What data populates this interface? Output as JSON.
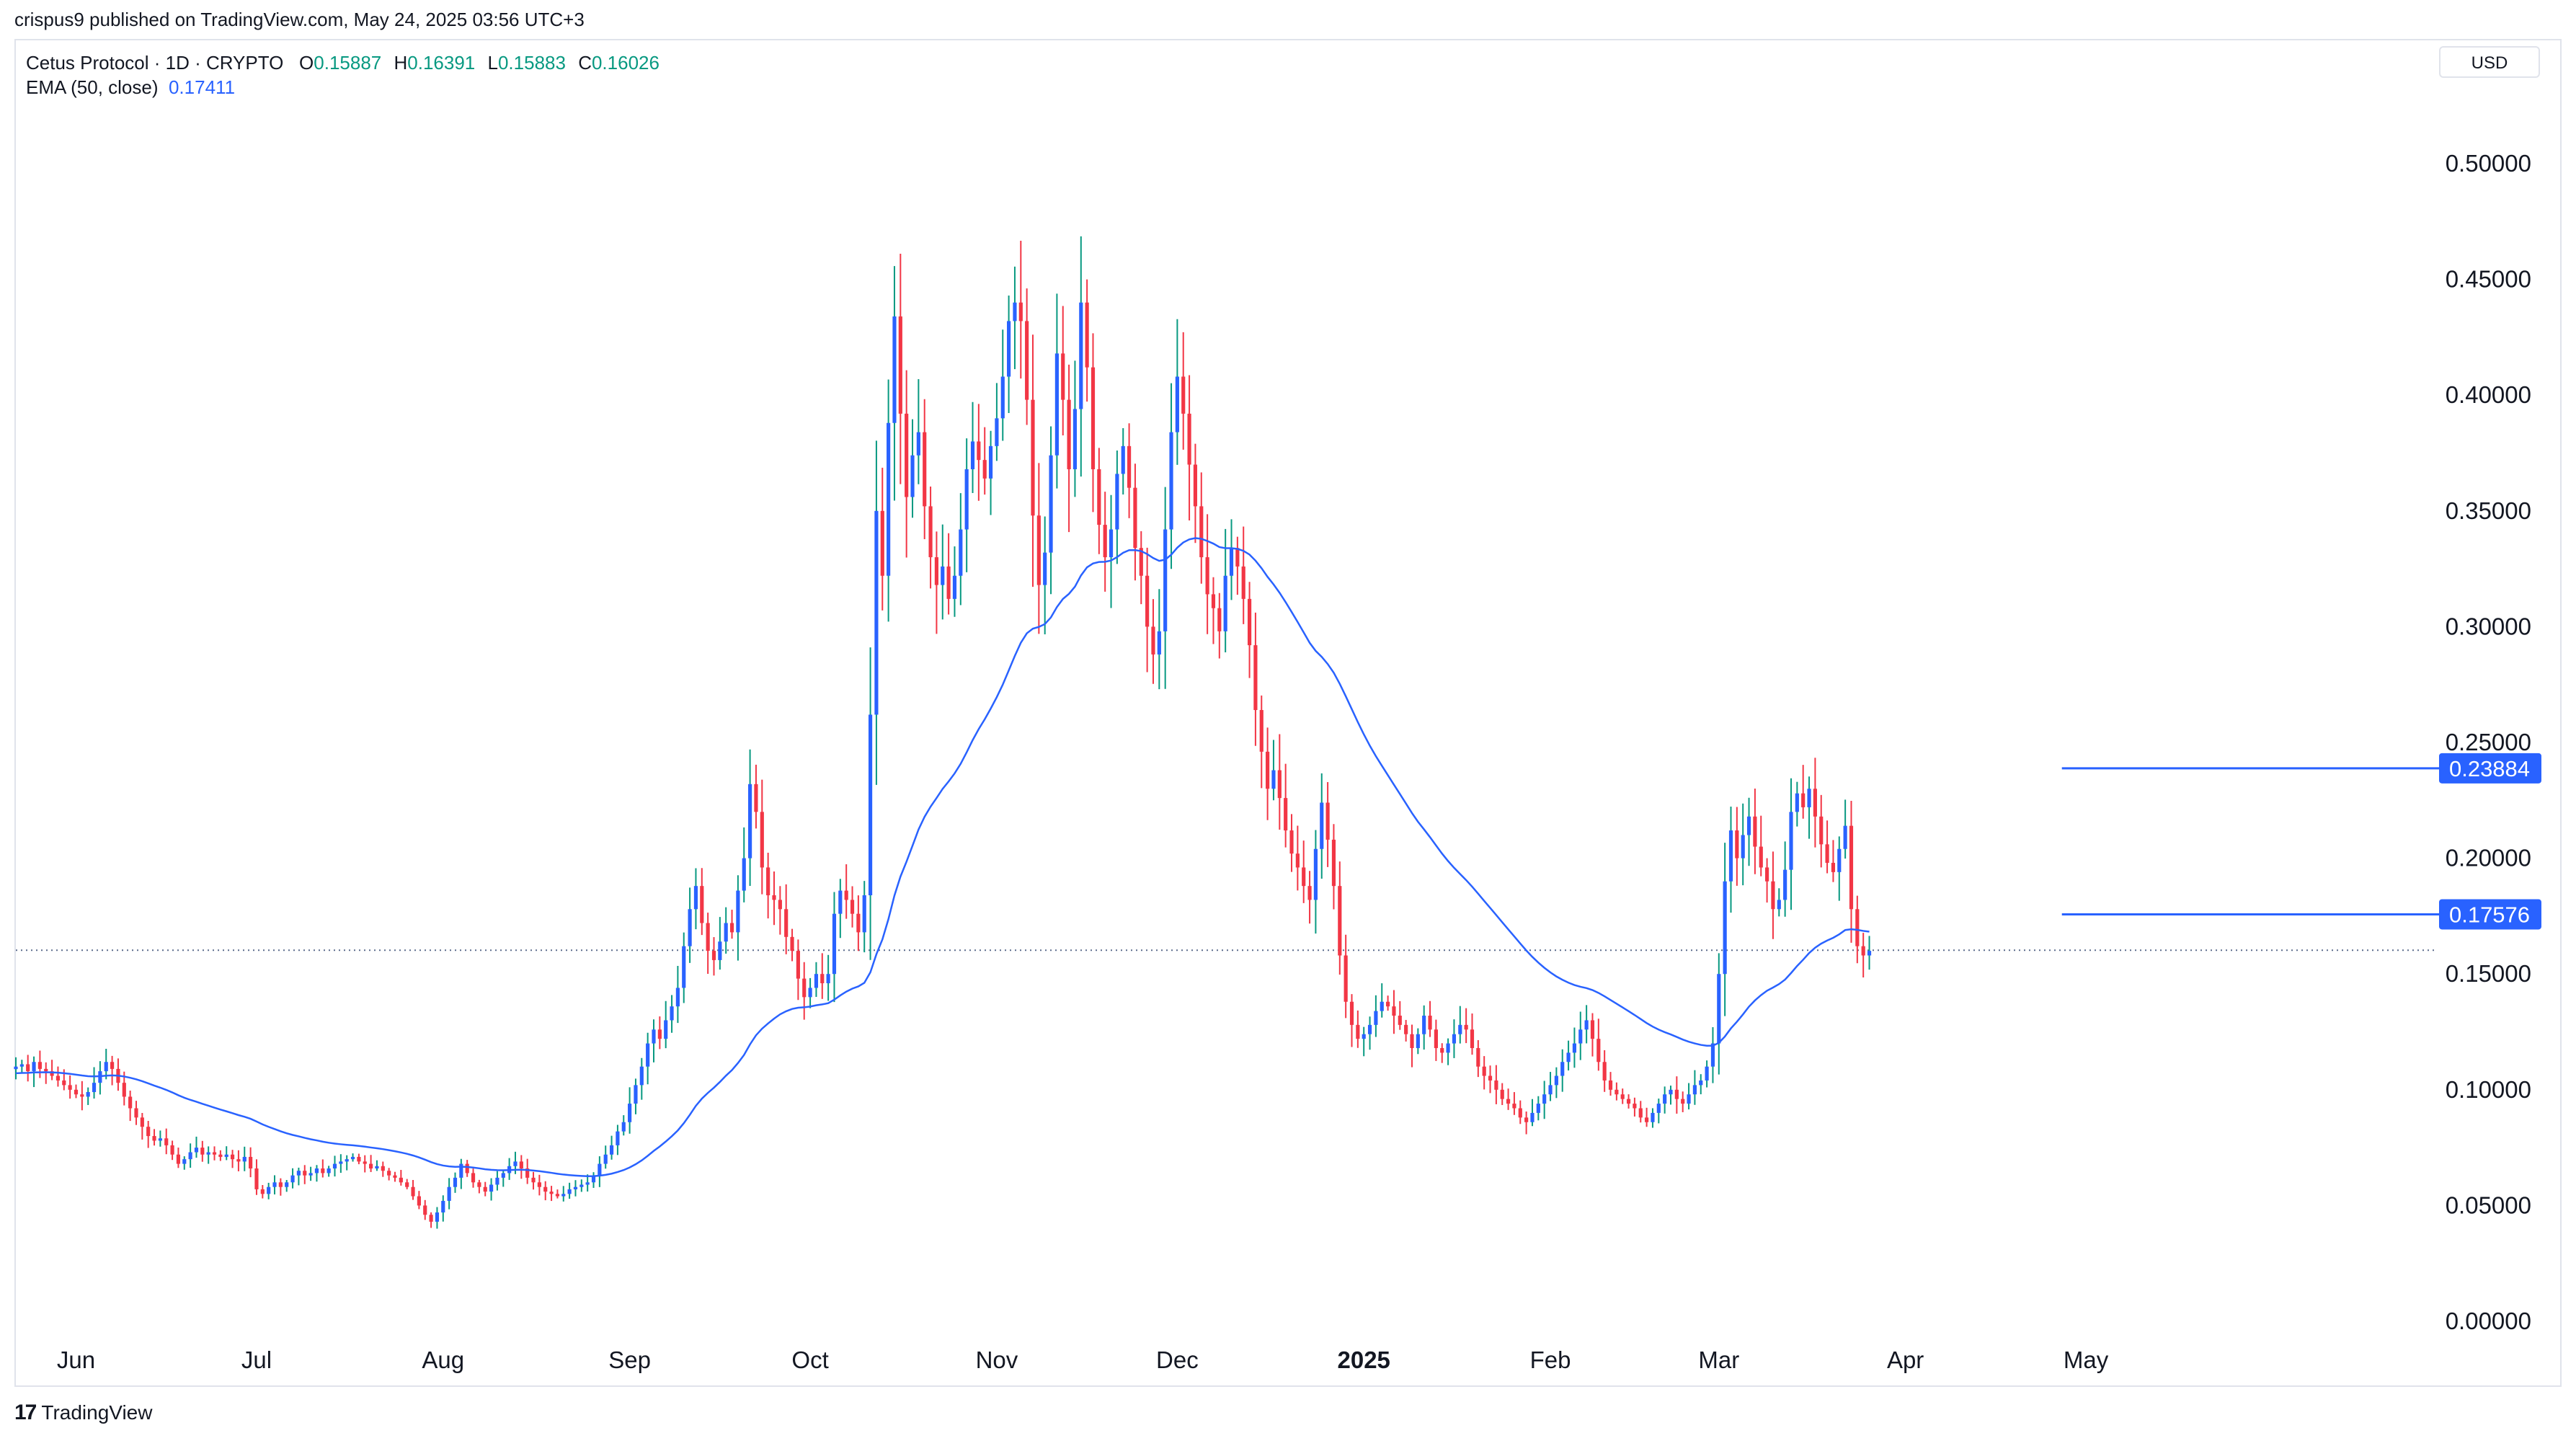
{
  "publisher_line": "crispus9 published on TradingView.com, May 24, 2025 03:56 UTC+3",
  "legend": {
    "symbol": "Cetus Protocol · 1D · CRYPTO",
    "open_label": "O",
    "open": "0.15887",
    "high_label": "H",
    "high": "0.16391",
    "low_label": "L",
    "low": "0.15883",
    "close_label": "C",
    "close": "0.16026",
    "ema_label": "EMA (50, close)",
    "ema_value": "0.17411"
  },
  "currency": "USD",
  "footer": {
    "logo_text": "TradingView",
    "logo_mark": "17"
  },
  "colors": {
    "up": "#089981",
    "down": "#f23645",
    "ema": "#2962ff",
    "badge": "#2962ff",
    "candle_body_up": "#2962ff"
  },
  "chart_data": {
    "type": "candlestick",
    "y_tick_labels": [
      "0.50000",
      "0.45000",
      "0.40000",
      "0.35000",
      "0.30000",
      "0.25000",
      "0.20000",
      "0.15000",
      "0.10000",
      "0.05000",
      "0.00000"
    ],
    "y_ticks": [
      0.5,
      0.45,
      0.4,
      0.35,
      0.3,
      0.25,
      0.2,
      0.15,
      0.1,
      0.05,
      0.0
    ],
    "ylim": [
      -0.008,
      0.525
    ],
    "x_labels": [
      {
        "label": "Jun",
        "x": "2024-06-01",
        "bold": false
      },
      {
        "label": "Jul",
        "x": "2024-07-01",
        "bold": false
      },
      {
        "label": "Aug",
        "x": "2024-08-01",
        "bold": false
      },
      {
        "label": "Sep",
        "x": "2024-09-01",
        "bold": false
      },
      {
        "label": "Oct",
        "x": "2024-10-01",
        "bold": false
      },
      {
        "label": "Nov",
        "x": "2024-11-01",
        "bold": false
      },
      {
        "label": "Dec",
        "x": "2024-12-01",
        "bold": false
      },
      {
        "label": "2025",
        "x": "2025-01-01",
        "bold": true
      },
      {
        "label": "Feb",
        "x": "2025-02-01",
        "bold": false
      },
      {
        "label": "Mar",
        "x": "2025-03-01",
        "bold": false
      },
      {
        "label": "Apr",
        "x": "2025-04-01",
        "bold": false
      },
      {
        "label": "May",
        "x": "2025-05-01",
        "bold": false
      }
    ],
    "xlim": [
      "2024-05-22",
      "2025-06-27"
    ],
    "current_price": 0.16026,
    "horizontal_levels": [
      {
        "value": 0.23884,
        "label": "0.23884",
        "from": "2025-04-27",
        "to": "2025-05-24"
      },
      {
        "value": 0.17576,
        "label": "0.17576",
        "from": "2025-04-27",
        "to": "2025-05-24"
      }
    ],
    "close_series_start": "2024-05-22",
    "close_series": [
      0.11,
      0.111,
      0.108,
      0.112,
      0.109,
      0.108,
      0.106,
      0.104,
      0.102,
      0.1,
      0.098,
      0.097,
      0.099,
      0.103,
      0.108,
      0.112,
      0.109,
      0.103,
      0.097,
      0.092,
      0.088,
      0.084,
      0.08,
      0.078,
      0.079,
      0.076,
      0.072,
      0.068,
      0.07,
      0.073,
      0.075,
      0.072,
      0.073,
      0.072,
      0.071,
      0.072,
      0.07,
      0.069,
      0.071,
      0.066,
      0.057,
      0.055,
      0.058,
      0.06,
      0.058,
      0.06,
      0.063,
      0.065,
      0.063,
      0.064,
      0.066,
      0.064,
      0.066,
      0.068,
      0.069,
      0.07,
      0.071,
      0.069,
      0.068,
      0.066,
      0.067,
      0.065,
      0.063,
      0.062,
      0.06,
      0.058,
      0.054,
      0.05,
      0.046,
      0.043,
      0.047,
      0.052,
      0.058,
      0.062,
      0.068,
      0.064,
      0.06,
      0.058,
      0.056,
      0.059,
      0.062,
      0.064,
      0.067,
      0.069,
      0.066,
      0.062,
      0.06,
      0.058,
      0.056,
      0.055,
      0.054,
      0.055,
      0.057,
      0.058,
      0.059,
      0.06,
      0.063,
      0.068,
      0.072,
      0.076,
      0.082,
      0.086,
      0.094,
      0.102,
      0.11,
      0.12,
      0.126,
      0.122,
      0.13,
      0.136,
      0.144,
      0.162,
      0.178,
      0.188,
      0.172,
      0.16,
      0.156,
      0.164,
      0.172,
      0.168,
      0.186,
      0.2,
      0.232,
      0.22,
      0.196,
      0.184,
      0.182,
      0.178,
      0.166,
      0.16,
      0.148,
      0.14,
      0.144,
      0.15,
      0.146,
      0.15,
      0.176,
      0.186,
      0.182,
      0.176,
      0.168,
      0.184,
      0.262,
      0.35,
      0.322,
      0.388,
      0.434,
      0.392,
      0.356,
      0.374,
      0.384,
      0.352,
      0.33,
      0.318,
      0.326,
      0.312,
      0.322,
      0.342,
      0.368,
      0.38,
      0.372,
      0.364,
      0.378,
      0.39,
      0.408,
      0.432,
      0.44,
      0.432,
      0.398,
      0.348,
      0.318,
      0.332,
      0.374,
      0.418,
      0.398,
      0.368,
      0.394,
      0.44,
      0.412,
      0.368,
      0.344,
      0.33,
      0.342,
      0.366,
      0.378,
      0.36,
      0.334,
      0.322,
      0.3,
      0.288,
      0.298,
      0.342,
      0.384,
      0.408,
      0.392,
      0.37,
      0.352,
      0.33,
      0.314,
      0.308,
      0.298,
      0.322,
      0.334,
      0.326,
      0.312,
      0.292,
      0.264,
      0.246,
      0.23,
      0.238,
      0.226,
      0.212,
      0.202,
      0.196,
      0.188,
      0.182,
      0.204,
      0.224,
      0.208,
      0.188,
      0.158,
      0.138,
      0.128,
      0.122,
      0.124,
      0.128,
      0.134,
      0.138,
      0.136,
      0.132,
      0.128,
      0.124,
      0.118,
      0.124,
      0.132,
      0.126,
      0.118,
      0.116,
      0.12,
      0.124,
      0.128,
      0.126,
      0.118,
      0.11,
      0.106,
      0.104,
      0.1,
      0.096,
      0.094,
      0.092,
      0.088,
      0.086,
      0.09,
      0.094,
      0.098,
      0.102,
      0.106,
      0.112,
      0.116,
      0.12,
      0.126,
      0.13,
      0.122,
      0.112,
      0.104,
      0.1,
      0.098,
      0.096,
      0.094,
      0.092,
      0.088,
      0.086,
      0.09,
      0.094,
      0.098,
      0.1,
      0.096,
      0.094,
      0.098,
      0.102,
      0.104,
      0.11,
      0.12,
      0.15,
      0.19,
      0.212,
      0.2,
      0.21,
      0.218,
      0.205,
      0.196,
      0.19,
      0.178,
      0.182,
      0.195,
      0.22,
      0.228,
      0.222,
      0.23,
      0.218,
      0.206,
      0.198,
      0.194,
      0.204,
      0.214,
      0.178,
      0.162,
      0.158,
      0.16
    ],
    "ema": {
      "name": "EMA (50, close)",
      "period": 50
    },
    "grid": false
  }
}
